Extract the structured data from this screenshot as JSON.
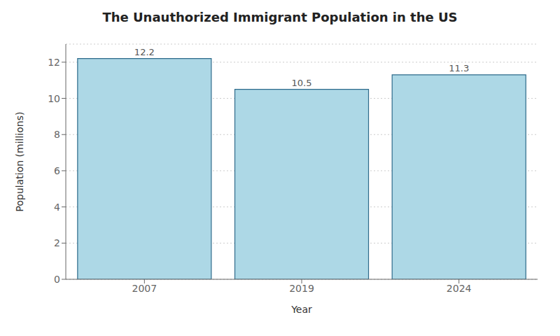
{
  "chart_data": {
    "type": "bar",
    "title": "The Unauthorized Immigrant Population in the US",
    "xlabel": "Year",
    "ylabel": "Population (millions)",
    "categories": [
      "2007",
      "2019",
      "2024"
    ],
    "values": [
      12.2,
      10.5,
      11.3
    ],
    "color": "#add8e6",
    "ylim": [
      0,
      13
    ],
    "yticks": [
      0,
      2,
      4,
      6,
      8,
      10,
      12
    ],
    "grid": true,
    "data_labels": true
  }
}
